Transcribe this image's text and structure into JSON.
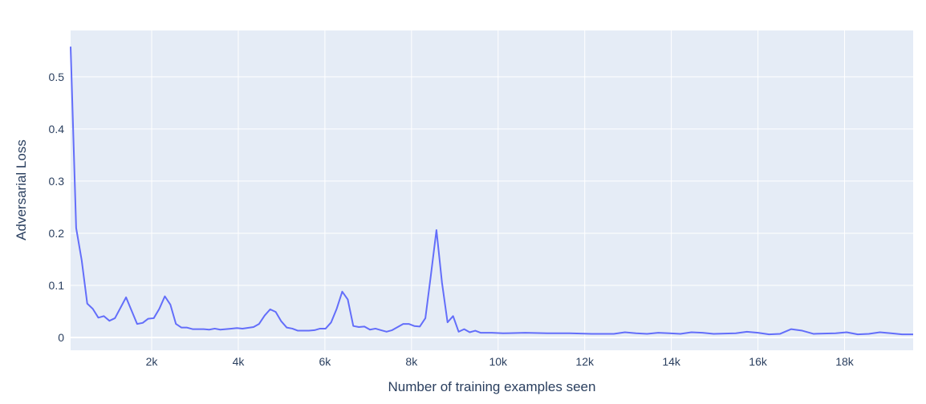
{
  "chart_data": {
    "type": "line",
    "x_label": "Number of training examples seen",
    "y_label": "Adversarial Loss",
    "color": "#636efa",
    "grid": true,
    "xlim": [
      128,
      19584
    ],
    "ylim": [
      -0.0246,
      0.589
    ],
    "xticks": [
      {
        "value": 2000,
        "label": "2k"
      },
      {
        "value": 4000,
        "label": "4k"
      },
      {
        "value": 6000,
        "label": "6k"
      },
      {
        "value": 8000,
        "label": "8k"
      },
      {
        "value": 10000,
        "label": "10k"
      },
      {
        "value": 12000,
        "label": "12k"
      },
      {
        "value": 14000,
        "label": "14k"
      },
      {
        "value": 16000,
        "label": "16k"
      },
      {
        "value": 18000,
        "label": "18k"
      }
    ],
    "yticks": [
      0,
      0.1,
      0.2,
      0.3,
      0.4,
      0.5
    ],
    "x": [
      128,
      256,
      384,
      512,
      640,
      768,
      896,
      1024,
      1152,
      1408,
      1664,
      1792,
      1920,
      2048,
      2176,
      2304,
      2432,
      2560,
      2688,
      2816,
      2944,
      3200,
      3328,
      3456,
      3584,
      3840,
      3968,
      4096,
      4352,
      4480,
      4608,
      4736,
      4864,
      4992,
      5120,
      5248,
      5376,
      5632,
      5760,
      5888,
      6016,
      6144,
      6272,
      6400,
      6528,
      6656,
      6784,
      6912,
      7040,
      7168,
      7296,
      7424,
      7552,
      7680,
      7808,
      7936,
      8064,
      8192,
      8320,
      8448,
      8576,
      8704,
      8832,
      8960,
      9088,
      9216,
      9344,
      9472,
      9600,
      9856,
      10112,
      10624,
      11136,
      11648,
      12160,
      12672,
      12928,
      13184,
      13440,
      13696,
      13952,
      14208,
      14464,
      14720,
      14976,
      15488,
      15744,
      16000,
      16256,
      16512,
      16768,
      17024,
      17280,
      17792,
      18048,
      18304,
      18560,
      18816,
      19072,
      19328,
      19584
    ],
    "values": [
      0.558,
      0.21,
      0.148,
      0.065,
      0.055,
      0.038,
      0.041,
      0.032,
      0.037,
      0.077,
      0.026,
      0.028,
      0.036,
      0.037,
      0.055,
      0.079,
      0.063,
      0.026,
      0.019,
      0.019,
      0.016,
      0.016,
      0.015,
      0.017,
      0.015,
      0.017,
      0.018,
      0.017,
      0.02,
      0.026,
      0.042,
      0.054,
      0.049,
      0.031,
      0.019,
      0.017,
      0.013,
      0.013,
      0.014,
      0.017,
      0.017,
      0.029,
      0.055,
      0.088,
      0.073,
      0.022,
      0.02,
      0.021,
      0.015,
      0.017,
      0.014,
      0.011,
      0.014,
      0.02,
      0.026,
      0.026,
      0.022,
      0.021,
      0.037,
      0.12,
      0.206,
      0.105,
      0.029,
      0.041,
      0.011,
      0.016,
      0.01,
      0.013,
      0.009,
      0.009,
      0.008,
      0.009,
      0.008,
      0.008,
      0.007,
      0.007,
      0.01,
      0.008,
      0.007,
      0.009,
      0.008,
      0.007,
      0.01,
      0.009,
      0.007,
      0.008,
      0.011,
      0.009,
      0.006,
      0.007,
      0.016,
      0.013,
      0.007,
      0.008,
      0.01,
      0.006,
      0.007,
      0.01,
      0.008,
      0.006,
      0.006
    ]
  }
}
